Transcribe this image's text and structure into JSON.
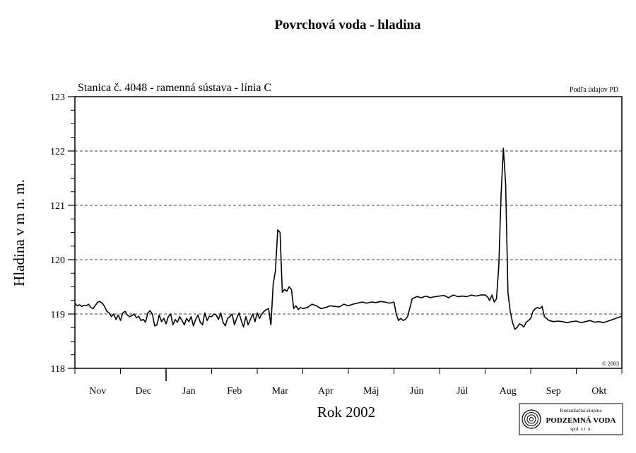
{
  "chart_data": {
    "type": "line",
    "title": "Povrchová voda - hladina",
    "subtitle": "Stanica č. 4048 - ramenná sústava - línia C",
    "source_note": "Podľa údajov PD",
    "copyright": "© 2003",
    "xlabel": "Rok 2002",
    "ylabel": "Hladina v m n. m.",
    "ylim": [
      118,
      123
    ],
    "yticks": [
      "118",
      "119",
      "120",
      "121",
      "122",
      "123"
    ],
    "grid": "horizontal dashed",
    "months": [
      "Nov",
      "Dec",
      "Jan",
      "Feb",
      "Mar",
      "Apr",
      "Máj",
      "Jún",
      "Júl",
      "Aug",
      "Sep",
      "Okt"
    ],
    "x_unit": "month index from start of Nov (0 = Nov start, 12 = end of Okt)",
    "series": [
      {
        "name": "",
        "x": [
          0.0,
          0.05,
          0.1,
          0.15,
          0.2,
          0.25,
          0.3,
          0.35,
          0.4,
          0.45,
          0.5,
          0.55,
          0.6,
          0.65,
          0.7,
          0.75,
          0.8,
          0.85,
          0.9,
          0.95,
          1.0,
          1.05,
          1.1,
          1.15,
          1.2,
          1.25,
          1.3,
          1.35,
          1.4,
          1.45,
          1.5,
          1.55,
          1.6,
          1.65,
          1.7,
          1.75,
          1.8,
          1.85,
          1.9,
          1.95,
          2.0,
          2.05,
          2.1,
          2.15,
          2.2,
          2.25,
          2.3,
          2.35,
          2.4,
          2.45,
          2.5,
          2.55,
          2.6,
          2.65,
          2.7,
          2.75,
          2.8,
          2.85,
          2.9,
          2.95,
          3.0,
          3.05,
          3.1,
          3.15,
          3.2,
          3.25,
          3.3,
          3.35,
          3.4,
          3.45,
          3.5,
          3.55,
          3.6,
          3.65,
          3.7,
          3.75,
          3.8,
          3.85,
          3.9,
          3.95,
          4.0,
          4.05,
          4.1,
          4.15,
          4.2,
          4.25,
          4.3,
          4.35,
          4.4,
          4.45,
          4.5,
          4.55,
          4.6,
          4.65,
          4.7,
          4.75,
          4.8,
          4.85,
          4.9,
          4.95,
          5.0,
          5.1,
          5.2,
          5.3,
          5.4,
          5.5,
          5.6,
          5.7,
          5.8,
          5.9,
          6.0,
          6.1,
          6.2,
          6.3,
          6.4,
          6.5,
          6.6,
          6.7,
          6.8,
          6.9,
          7.0,
          7.05,
          7.1,
          7.15,
          7.2,
          7.25,
          7.3,
          7.4,
          7.5,
          7.6,
          7.7,
          7.8,
          7.9,
          8.0,
          8.1,
          8.2,
          8.3,
          8.4,
          8.5,
          8.6,
          8.7,
          8.8,
          8.9,
          9.0,
          9.05,
          9.1,
          9.15,
          9.2,
          9.25,
          9.3,
          9.35,
          9.4,
          9.45,
          9.5,
          9.55,
          9.6,
          9.65,
          9.7,
          9.75,
          9.8,
          9.85,
          9.9,
          9.95,
          10.0,
          10.05,
          10.1,
          10.15,
          10.2,
          10.25,
          10.3,
          10.4,
          10.5,
          10.6,
          10.7,
          10.8,
          10.9,
          11.0,
          11.1,
          11.2,
          11.3,
          11.4,
          11.5,
          11.6,
          11.7,
          11.8,
          11.9,
          12.0
        ],
        "y": [
          119.2,
          119.15,
          119.17,
          119.14,
          119.16,
          119.15,
          119.18,
          119.12,
          119.1,
          119.16,
          119.22,
          119.23,
          119.2,
          119.14,
          119.05,
          119.02,
          118.95,
          119.0,
          118.9,
          118.98,
          118.88,
          119.02,
          119.05,
          118.98,
          118.95,
          118.97,
          119.0,
          118.93,
          118.96,
          118.88,
          118.9,
          118.85,
          119.02,
          119.06,
          119.0,
          118.78,
          118.8,
          118.98,
          118.86,
          118.92,
          118.82,
          118.95,
          119.0,
          118.8,
          118.9,
          118.85,
          118.95,
          118.88,
          118.8,
          118.92,
          118.86,
          118.95,
          118.78,
          118.9,
          118.98,
          118.85,
          118.8,
          119.02,
          118.88,
          118.96,
          118.95,
          119.0,
          118.98,
          118.9,
          119.02,
          118.85,
          118.78,
          118.92,
          118.95,
          119.0,
          118.8,
          118.92,
          119.02,
          118.88,
          118.76,
          118.95,
          118.8,
          118.9,
          119.0,
          118.86,
          119.02,
          118.92,
          119.0,
          119.05,
          119.08,
          119.1,
          118.8,
          119.55,
          119.8,
          120.55,
          120.5,
          119.4,
          119.45,
          119.42,
          119.5,
          119.45,
          119.1,
          119.15,
          119.08,
          119.12,
          119.1,
          119.12,
          119.18,
          119.15,
          119.1,
          119.12,
          119.15,
          119.14,
          119.13,
          119.18,
          119.15,
          119.18,
          119.2,
          119.22,
          119.2,
          119.22,
          119.21,
          119.23,
          119.22,
          119.2,
          119.22,
          119.0,
          118.88,
          118.92,
          118.88,
          118.9,
          118.95,
          119.28,
          119.32,
          119.3,
          119.33,
          119.3,
          119.32,
          119.33,
          119.34,
          119.3,
          119.35,
          119.32,
          119.33,
          119.32,
          119.35,
          119.33,
          119.35,
          119.35,
          119.32,
          119.25,
          119.35,
          119.22,
          119.28,
          119.9,
          121.2,
          122.05,
          121.4,
          119.4,
          119.05,
          118.85,
          118.72,
          118.75,
          118.82,
          118.8,
          118.76,
          118.85,
          118.88,
          118.92,
          119.05,
          119.1,
          119.12,
          119.1,
          119.14,
          118.95,
          118.88,
          118.86,
          118.87,
          118.86,
          118.84,
          118.86,
          118.87,
          118.84,
          118.86,
          118.88,
          118.85,
          118.86,
          118.84,
          118.87,
          118.9,
          118.93,
          118.96
        ]
      }
    ]
  },
  "logo": {
    "line1": "Konzultačná skupina",
    "line2": "PODZEMNÁ VODA",
    "line3": "spol. s r. o."
  }
}
